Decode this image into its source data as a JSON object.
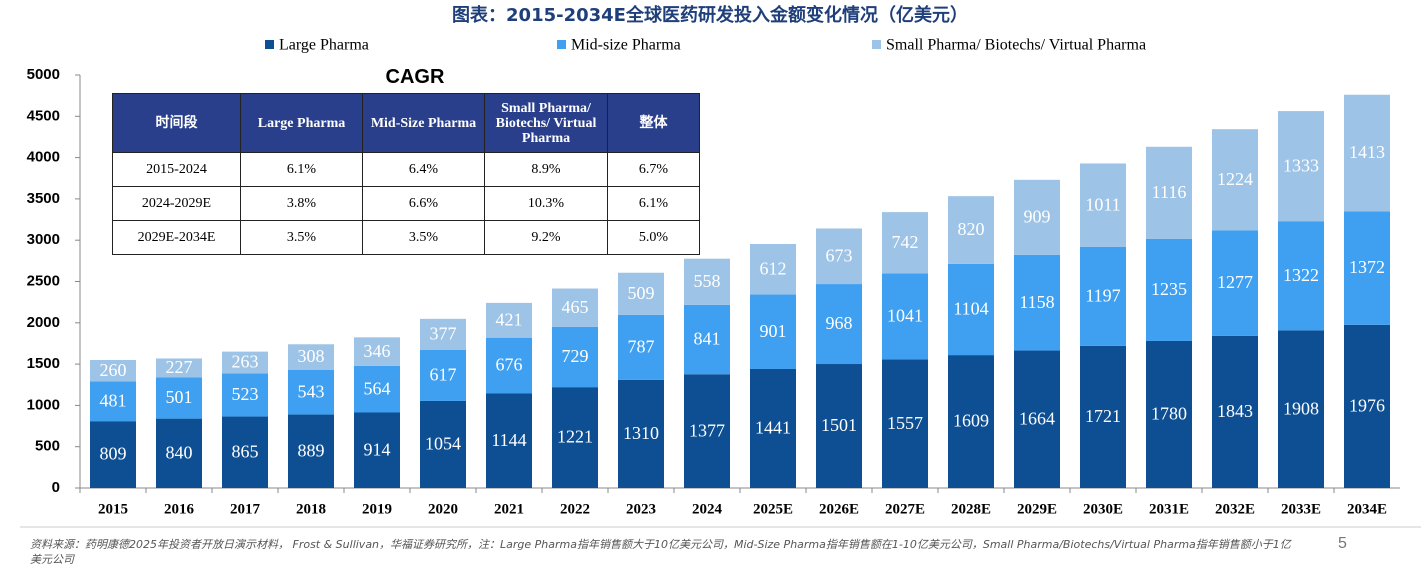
{
  "chart_data": {
    "type": "bar",
    "stacked": true,
    "title": "图表：2015-2034E全球医药研发投入金额变化情况（亿美元）",
    "categories": [
      "2015",
      "2016",
      "2017",
      "2018",
      "2019",
      "2020",
      "2021",
      "2022",
      "2023",
      "2024",
      "2025E",
      "2026E",
      "2027E",
      "2028E",
      "2029E",
      "2030E",
      "2031E",
      "2032E",
      "2033E",
      "2034E"
    ],
    "series": [
      {
        "name": "Large Pharma",
        "color": "#0e4f94",
        "values": [
          809,
          840,
          865,
          889,
          914,
          1054,
          1144,
          1221,
          1310,
          1377,
          1441,
          1501,
          1557,
          1609,
          1664,
          1721,
          1780,
          1843,
          1908,
          1976
        ]
      },
      {
        "name": "Mid-size Pharma",
        "color": "#3f9ff0",
        "values": [
          481,
          501,
          523,
          543,
          564,
          617,
          676,
          729,
          787,
          841,
          901,
          968,
          1041,
          1104,
          1158,
          1197,
          1235,
          1277,
          1322,
          1372
        ]
      },
      {
        "name": "Small Pharma/ Biotechs/ Virtual Pharma",
        "color": "#9dc3e6",
        "values": [
          260,
          227,
          263,
          308,
          346,
          377,
          421,
          465,
          509,
          558,
          612,
          673,
          742,
          820,
          909,
          1011,
          1116,
          1224,
          1333,
          1413
        ]
      }
    ],
    "ylim": [
      0,
      5000
    ],
    "yticks": [
      0,
      500,
      1000,
      1500,
      2000,
      2500,
      3000,
      3500,
      4000,
      4500,
      5000
    ],
    "grid": false,
    "legend": "top"
  },
  "table": {
    "caption": "CAGR",
    "header": [
      "时间段",
      "Large Pharma",
      "Mid-Size Pharma",
      "Small Pharma/ Biotechs/ Virtual Pharma",
      "整体"
    ],
    "rows": [
      [
        "2015-2024",
        "6.1%",
        "6.4%",
        "8.9%",
        "6.7%"
      ],
      [
        "2024-2029E",
        "3.8%",
        "6.6%",
        "10.3%",
        "6.1%"
      ],
      [
        "2029E-2034E",
        "3.5%",
        "3.5%",
        "9.2%",
        "5.0%"
      ]
    ]
  },
  "footer": {
    "source": "资料来源：药明康德2025年投资者开放日演示材料， Frost & Sullivan，华福证券研究所，注：Large Pharma指年销售额大于10亿美元公司，Mid-Size Pharma指年销售额在1-10亿美元公司，Small Pharma/Biotechs/Virtual Pharma指年销售额小于1亿美元公司",
    "page": "5"
  }
}
